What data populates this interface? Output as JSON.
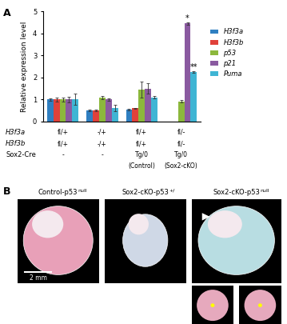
{
  "chart_data": {
    "type": "bar",
    "panel_label": "A",
    "y_label": "Relative expression level",
    "categories": [
      null,
      null,
      null,
      null
    ],
    "series": [
      {
        "name": "H3f3a",
        "color": "#2f7fc1",
        "values": [
          1.0,
          0.5,
          0.55,
          0.0
        ],
        "errors": [
          0.05,
          0.03,
          0.03,
          0.0
        ]
      },
      {
        "name": "H3f3b",
        "color": "#e0413a",
        "values": [
          1.0,
          0.5,
          0.6,
          0.0
        ],
        "errors": [
          0.1,
          0.03,
          0.03,
          0.0
        ]
      },
      {
        "name": "p53",
        "color": "#8cb83c",
        "values": [
          1.0,
          1.08,
          1.45,
          0.92
        ],
        "errors": [
          0.1,
          0.08,
          0.35,
          0.05
        ]
      },
      {
        "name": "p21",
        "color": "#8a5aa0",
        "values": [
          1.0,
          1.0,
          1.5,
          4.45
        ],
        "errors": [
          0.12,
          0.05,
          0.25,
          0.05
        ]
      },
      {
        "name": "Puma",
        "color": "#3fb5d4",
        "values": [
          1.0,
          0.6,
          1.1,
          2.25
        ],
        "errors": [
          0.25,
          0.15,
          0.05,
          0.03
        ]
      }
    ],
    "annotations": [
      {
        "text": "*",
        "series": "p21",
        "category_index": 3
      },
      {
        "text": "**",
        "series": "Puma",
        "category_index": 3
      }
    ],
    "xlim": [
      -0.5,
      3.5
    ],
    "ylim": [
      0,
      5
    ],
    "yticks": [
      0,
      1,
      2,
      3,
      4,
      5
    ],
    "legend": "upper left",
    "tick_labels": "y",
    "genotype_table": {
      "rows": [
        {
          "label": "H3f3a",
          "cells": [
            "fl/+",
            "-/+",
            "fl/+",
            "fl/-"
          ]
        },
        {
          "label": "H3f3b",
          "cells": [
            "fl/+",
            "-/+",
            "fl/+",
            "fl/-"
          ]
        },
        {
          "label": "Sox2-Cre",
          "cells": [
            "-",
            "-",
            "Tg/0",
            "Tg/0"
          ]
        },
        {
          "label": null,
          "cells": [
            null,
            null,
            "(Control)",
            "(Sox2-cKO)"
          ]
        }
      ]
    }
  },
  "panel_b": {
    "panel_label": "B",
    "images": [
      {
        "label": "Control-p53",
        "superscript": "null"
      },
      {
        "label": "Sox2-cKO-p53",
        "superscript": "+/"
      },
      {
        "label": "Sox2-cKO-p53",
        "superscript": "null"
      }
    ],
    "scale_bar": "2 mm"
  }
}
